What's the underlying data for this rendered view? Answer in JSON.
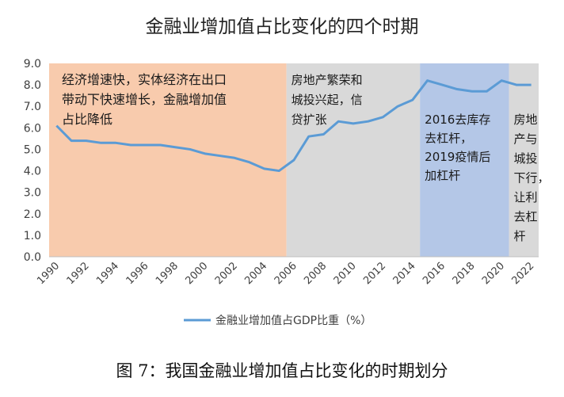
{
  "chart_data": {
    "type": "line",
    "title": "金融业增加值占比变化的四个时期",
    "x": [
      1990,
      1991,
      1992,
      1993,
      1994,
      1995,
      1996,
      1997,
      1998,
      1999,
      2000,
      2001,
      2002,
      2003,
      2004,
      2005,
      2006,
      2007,
      2008,
      2009,
      2010,
      2011,
      2012,
      2013,
      2014,
      2015,
      2016,
      2017,
      2018,
      2019,
      2020,
      2021,
      2022
    ],
    "series": [
      {
        "name": "金融业增加值占GDP比重（%）",
        "color": "#5b9bd5",
        "values": [
          6.1,
          5.4,
          5.4,
          5.3,
          5.3,
          5.2,
          5.2,
          5.2,
          5.1,
          5.0,
          4.8,
          4.7,
          4.6,
          4.4,
          4.1,
          4.0,
          4.5,
          5.6,
          5.7,
          6.3,
          6.2,
          6.3,
          6.5,
          7.0,
          7.3,
          8.2,
          8.0,
          7.8,
          7.7,
          7.7,
          8.2,
          8.0,
          8.0
        ]
      }
    ],
    "ylim": [
      0,
      9
    ],
    "xlim": [
      1990,
      2022
    ],
    "y_ticks": [
      "0.0",
      "1.0",
      "2.0",
      "3.0",
      "4.0",
      "5.0",
      "6.0",
      "7.0",
      "8.0",
      "9.0"
    ],
    "x_ticks": [
      "1990",
      "1992",
      "1994",
      "1996",
      "1998",
      "2000",
      "2002",
      "2004",
      "2006",
      "2008",
      "2010",
      "2012",
      "2014",
      "2016",
      "2018",
      "2020",
      "2022"
    ],
    "grid": false,
    "legend_position": "bottom",
    "periods": [
      {
        "start": 1989.5,
        "end": 2005.5,
        "color": "#f8cbad",
        "lines": [
          "经济增速快，实体经济在出口",
          "带动下快速增长，金融增加值",
          "占比降低"
        ]
      },
      {
        "start": 2005.5,
        "end": 2014.5,
        "color": "#d9d9d9",
        "lines": [
          "房地产繁荣和",
          "城投兴起，信",
          "贷扩张"
        ]
      },
      {
        "start": 2014.5,
        "end": 2020.5,
        "color": "#b4c7e7",
        "lines": [
          "2016去库存",
          "去杠杆，",
          "2019疫情后",
          "加杠杆"
        ]
      },
      {
        "start": 2020.5,
        "end": 2022.5,
        "color": "#d9d9d9",
        "lines": [
          "房地",
          "产与",
          "城投",
          "下行，",
          "让利",
          "去杠",
          "杆"
        ]
      }
    ]
  },
  "caption": "图 7：我国金融业增加值占比变化的时期划分"
}
